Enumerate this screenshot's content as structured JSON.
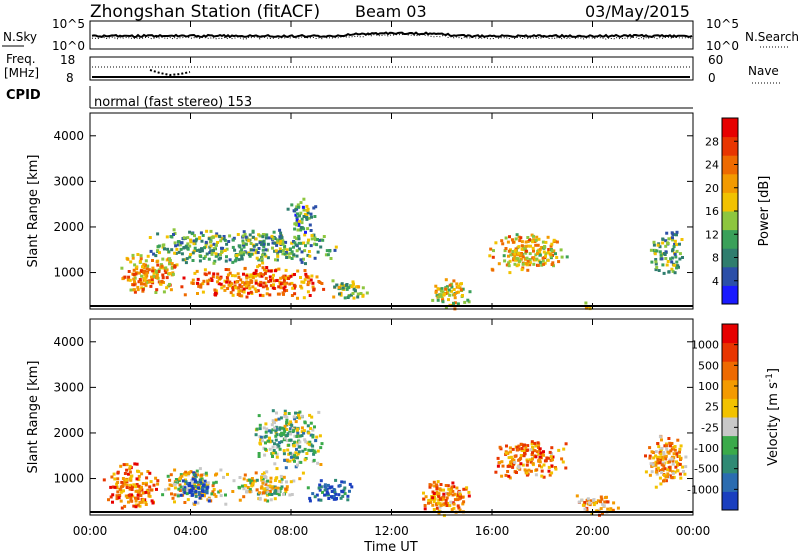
{
  "header": {
    "station": "Zhongshan Station (fitACF)",
    "beam": "Beam 03",
    "date": "03/May/2015"
  },
  "noise_panel": {
    "left_label": "N.Sky",
    "left_ticks": [
      "10^5",
      "10^0"
    ],
    "right_label": "N.Search",
    "right_ticks": [
      "10^5",
      "10^0"
    ]
  },
  "freq_panel": {
    "label_line1": "Freq.",
    "label_line2": "[MHz]",
    "left_ticks": [
      "18",
      "8"
    ],
    "right_label": "Nave",
    "right_ticks": [
      "60",
      "0"
    ]
  },
  "cpid": {
    "label": "CPID",
    "text": "normal (fast stereo) 153"
  },
  "time_axis": {
    "label": "Time UT",
    "ticks": [
      "00:00",
      "04:00",
      "08:00",
      "12:00",
      "16:00",
      "20:00",
      "00:00"
    ]
  },
  "chart_data": [
    {
      "type": "heatmap",
      "parameter": "power",
      "ylabel": "Slant Range [km]",
      "xlim": [
        0,
        24
      ],
      "ylim": [
        200,
        4500
      ],
      "yticks": [
        "1000",
        "2000",
        "3000",
        "4000"
      ],
      "colorbar_label": "Power [dB]",
      "colorbar_ticks": [
        "4",
        "8",
        "12",
        "16",
        "20",
        "24",
        "28"
      ],
      "colorbar_colors": [
        "#1a1aff",
        "#2b4fa8",
        "#2f7d6e",
        "#3aa05a",
        "#8dc63f",
        "#f2c200",
        "#f39a00",
        "#ee6a00",
        "#e83500",
        "#e60000"
      ],
      "blobs": [
        {
          "t0": 1.0,
          "t1": 3.5,
          "r0": 500,
          "r1": 1500,
          "level": 0.65
        },
        {
          "t0": 3.5,
          "t1": 9.5,
          "r0": 450,
          "r1": 1200,
          "level": 0.75
        },
        {
          "t0": 2.0,
          "t1": 10.0,
          "r0": 1200,
          "r1": 2000,
          "level": 0.35
        },
        {
          "t0": 7.8,
          "t1": 9.0,
          "r0": 1800,
          "r1": 2700,
          "level": 0.3
        },
        {
          "t0": 9.5,
          "t1": 11.0,
          "r0": 400,
          "r1": 900,
          "level": 0.45
        },
        {
          "t0": 13.5,
          "t1": 15.2,
          "r0": 200,
          "r1": 900,
          "level": 0.55
        },
        {
          "t0": 15.8,
          "t1": 19.0,
          "r0": 1000,
          "r1": 1900,
          "level": 0.6
        },
        {
          "t0": 19.5,
          "t1": 20.0,
          "r0": 200,
          "r1": 400,
          "level": 0.5
        },
        {
          "t0": 22.2,
          "t1": 23.6,
          "r0": 900,
          "r1": 2000,
          "level": 0.35
        }
      ]
    },
    {
      "type": "heatmap",
      "parameter": "velocity",
      "ylabel": "Slant Range [km]",
      "xlim": [
        0,
        24
      ],
      "ylim": [
        200,
        4500
      ],
      "yticks": [
        "1000",
        "2000",
        "3000",
        "4000"
      ],
      "colorbar_label": "Velocity [m s^-1]",
      "colorbar_ticks": [
        "1000",
        "500",
        "100",
        "25",
        "-25",
        "-100",
        "-500",
        "-1000"
      ],
      "colorbar_colors": [
        "#1a3fbf",
        "#2b6cb0",
        "#2f8a74",
        "#3aaa4a",
        "#c8c8c8",
        "#f2c200",
        "#f39a00",
        "#ee6a00",
        "#e83500",
        "#e60000"
      ],
      "blobs": [
        {
          "t0": 0.5,
          "t1": 2.8,
          "r0": 300,
          "r1": 1400,
          "level": 0.75
        },
        {
          "t0": 2.8,
          "t1": 5.5,
          "r0": 450,
          "r1": 1300,
          "level": 0.55
        },
        {
          "t0": 3.5,
          "t1": 4.8,
          "r0": 500,
          "r1": 1200,
          "level": 0.1
        },
        {
          "t0": 5.5,
          "t1": 8.5,
          "r0": 500,
          "r1": 1200,
          "level": 0.5
        },
        {
          "t0": 8.5,
          "t1": 10.5,
          "r0": 500,
          "r1": 1000,
          "level": 0.1
        },
        {
          "t0": 6.5,
          "t1": 9.2,
          "r0": 1200,
          "r1": 2600,
          "level": 0.4
        },
        {
          "t0": 13.0,
          "t1": 15.2,
          "r0": 200,
          "r1": 1000,
          "level": 0.7
        },
        {
          "t0": 15.8,
          "t1": 19.0,
          "r0": 1000,
          "r1": 1900,
          "level": 0.7
        },
        {
          "t0": 19.2,
          "t1": 21.0,
          "r0": 200,
          "r1": 700,
          "level": 0.65
        },
        {
          "t0": 22.0,
          "t1": 23.8,
          "r0": 800,
          "r1": 2000,
          "level": 0.65
        }
      ]
    }
  ]
}
